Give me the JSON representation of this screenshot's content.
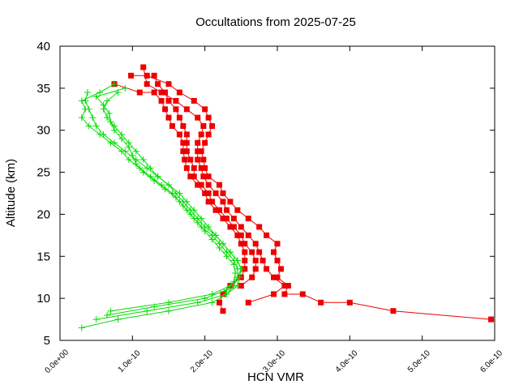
{
  "chart_data": {
    "type": "line",
    "title": "Occultations from 2025-07-25",
    "xlabel": "HCN VMR",
    "ylabel": "Altitude (km)",
    "xlim": [
      0,
      6e-10
    ],
    "ylim": [
      5,
      40
    ],
    "x_ticks": [
      0,
      1e-10,
      2e-10,
      3e-10,
      4e-10,
      5e-10,
      6e-10
    ],
    "x_tick_labels": [
      "0.0e+00",
      "1.0e-10",
      "2.0e-10",
      "3.0e-10",
      "4.0e-10",
      "5.0e-10",
      "6.0e-10"
    ],
    "y_ticks": [
      5,
      10,
      15,
      20,
      25,
      30,
      35,
      40
    ],
    "y_tick_labels": [
      "5",
      "10",
      "15",
      "20",
      "25",
      "30",
      "35",
      "40"
    ],
    "grid": false,
    "legend": "none",
    "series": [
      {
        "color": "#ee0000",
        "marker": "square",
        "points": [
          [
            5.95e-10,
            7.5
          ],
          [
            4.6e-10,
            8.5
          ],
          [
            4e-10,
            9.5
          ],
          [
            3.6e-10,
            9.5
          ],
          [
            3.35e-10,
            10.5
          ],
          [
            3.1e-10,
            10.5
          ],
          [
            3.15e-10,
            11.5
          ],
          [
            3e-10,
            12.5
          ],
          [
            3.05e-10,
            13.5
          ],
          [
            3e-10,
            14.5
          ],
          [
            2.95e-10,
            15.5
          ],
          [
            3e-10,
            16.5
          ],
          [
            2.85e-10,
            17.5
          ],
          [
            2.75e-10,
            18.5
          ],
          [
            2.6e-10,
            19.5
          ],
          [
            2.45e-10,
            20.5
          ],
          [
            2.35e-10,
            21.5
          ],
          [
            2.25e-10,
            22.5
          ],
          [
            2.2e-10,
            23.5
          ],
          [
            2.05e-10,
            24.5
          ],
          [
            2e-10,
            25.5
          ],
          [
            1.98e-10,
            26.5
          ],
          [
            1.95e-10,
            27.5
          ],
          [
            2e-10,
            28.5
          ],
          [
            2.05e-10,
            29.5
          ],
          [
            2.1e-10,
            30.5
          ],
          [
            2.05e-10,
            31.5
          ],
          [
            2e-10,
            32.5
          ],
          [
            1.85e-10,
            33.5
          ],
          [
            1.65e-10,
            34.5
          ],
          [
            1.5e-10,
            35.5
          ],
          [
            1.2e-10,
            36.5
          ],
          [
            9.8e-11,
            36.5
          ]
        ]
      },
      {
        "color": "#ee0000",
        "marker": "square",
        "points": [
          [
            2.6e-10,
            9.5
          ],
          [
            2.95e-10,
            10.5
          ],
          [
            3.1e-10,
            11.5
          ],
          [
            2.95e-10,
            12.5
          ],
          [
            2.85e-10,
            13.5
          ],
          [
            2.8e-10,
            14.5
          ],
          [
            2.75e-10,
            15.5
          ],
          [
            2.7e-10,
            16.5
          ],
          [
            2.6e-10,
            17.5
          ],
          [
            2.5e-10,
            18.5
          ],
          [
            2.4e-10,
            19.5
          ],
          [
            2.3e-10,
            20.5
          ],
          [
            2.25e-10,
            21.5
          ],
          [
            2.15e-10,
            22.5
          ],
          [
            2.05e-10,
            23.5
          ],
          [
            1.98e-10,
            24.5
          ],
          [
            1.95e-10,
            25.5
          ],
          [
            1.9e-10,
            26.5
          ],
          [
            1.9e-10,
            27.5
          ],
          [
            1.9e-10,
            28.5
          ],
          [
            1.95e-10,
            29.5
          ],
          [
            1.98e-10,
            30.5
          ],
          [
            1.9e-10,
            31.5
          ],
          [
            1.75e-10,
            32.5
          ],
          [
            1.6e-10,
            33.5
          ],
          [
            1.4e-10,
            34.5
          ],
          [
            1.2e-10,
            35.5
          ],
          [
            1.15e-10,
            37.5
          ]
        ]
      },
      {
        "color": "#ee0000",
        "marker": "square",
        "points": [
          [
            2.25e-10,
            8.5
          ],
          [
            2.2e-10,
            9.5
          ],
          [
            2.25e-10,
            10.5
          ],
          [
            2.35e-10,
            11.5
          ],
          [
            2.5e-10,
            12.5
          ],
          [
            2.55e-10,
            13.5
          ],
          [
            2.55e-10,
            14.5
          ],
          [
            2.55e-10,
            15.5
          ],
          [
            2.5e-10,
            16.5
          ],
          [
            2.45e-10,
            17.5
          ],
          [
            2.35e-10,
            18.5
          ],
          [
            2.25e-10,
            19.5
          ],
          [
            2.15e-10,
            20.5
          ],
          [
            2.05e-10,
            21.5
          ],
          [
            2e-10,
            22.5
          ],
          [
            1.9e-10,
            23.5
          ],
          [
            1.8e-10,
            24.5
          ],
          [
            1.75e-10,
            25.5
          ],
          [
            1.72e-10,
            26.5
          ],
          [
            1.7e-10,
            27.5
          ],
          [
            1.7e-10,
            28.5
          ],
          [
            1.65e-10,
            29.5
          ],
          [
            1.55e-10,
            30.5
          ],
          [
            1.5e-10,
            31.5
          ],
          [
            1.45e-10,
            32.5
          ],
          [
            1.4e-10,
            33.5
          ],
          [
            1.3e-10,
            34.5
          ],
          [
            1.1e-10,
            34.5
          ],
          [
            7.5e-11,
            35.5
          ]
        ]
      },
      {
        "color": "#ee0000",
        "marker": "square",
        "points": [
          [
            2.5e-10,
            11.5
          ],
          [
            2.65e-10,
            12.5
          ],
          [
            2.7e-10,
            13.5
          ],
          [
            2.7e-10,
            14.5
          ],
          [
            2.65e-10,
            15.5
          ],
          [
            2.55e-10,
            16.5
          ],
          [
            2.5e-10,
            17.5
          ],
          [
            2.4e-10,
            18.5
          ],
          [
            2.3e-10,
            19.5
          ],
          [
            2.2e-10,
            20.5
          ],
          [
            2.1e-10,
            21.5
          ],
          [
            2.05e-10,
            22.5
          ],
          [
            1.95e-10,
            23.5
          ],
          [
            1.85e-10,
            24.5
          ],
          [
            1.85e-10,
            25.5
          ],
          [
            1.8e-10,
            26.5
          ],
          [
            1.75e-10,
            27.5
          ],
          [
            1.75e-10,
            28.5
          ],
          [
            1.75e-10,
            29.5
          ],
          [
            1.7e-10,
            30.5
          ],
          [
            1.65e-10,
            31.5
          ],
          [
            1.6e-10,
            32.5
          ],
          [
            1.5e-10,
            33.5
          ],
          [
            1.45e-10,
            34.5
          ],
          [
            1.35e-10,
            35.5
          ],
          [
            1.3e-10,
            36.5
          ]
        ]
      },
      {
        "color": "#00dd00",
        "marker": "plus",
        "points": [
          [
            3e-11,
            6.5
          ],
          [
            8e-11,
            7.5
          ],
          [
            1.5e-10,
            8.5
          ],
          [
            2.1e-10,
            9.5
          ],
          [
            2.3e-10,
            10.5
          ],
          [
            2.45e-10,
            11.5
          ],
          [
            2.48e-10,
            12.5
          ],
          [
            2.5e-10,
            13.5
          ],
          [
            2.45e-10,
            14.5
          ],
          [
            2.35e-10,
            15.5
          ],
          [
            2.25e-10,
            16.5
          ],
          [
            2.15e-10,
            17.5
          ],
          [
            2.05e-10,
            18.5
          ],
          [
            1.95e-10,
            19.5
          ],
          [
            1.85e-10,
            20.5
          ],
          [
            1.75e-10,
            21.5
          ],
          [
            1.65e-10,
            22.5
          ],
          [
            1.5e-10,
            23.5
          ],
          [
            1.35e-10,
            24.5
          ],
          [
            1.2e-10,
            25.5
          ],
          [
            1.05e-10,
            26.5
          ],
          [
            9e-11,
            27.5
          ],
          [
            7.5e-11,
            28.5
          ],
          [
            6e-11,
            29.5
          ],
          [
            5e-11,
            30.5
          ],
          [
            4.5e-11,
            31.5
          ],
          [
            4e-11,
            32.5
          ],
          [
            3.5e-11,
            33.5
          ],
          [
            3.8e-11,
            34.5
          ]
        ]
      },
      {
        "color": "#00dd00",
        "marker": "plus",
        "points": [
          [
            5e-11,
            7.5
          ],
          [
            1.2e-10,
            8.5
          ],
          [
            1.9e-10,
            9.5
          ],
          [
            2.3e-10,
            10.5
          ],
          [
            2.4e-10,
            11.5
          ],
          [
            2.45e-10,
            12.5
          ],
          [
            2.45e-10,
            13.5
          ],
          [
            2.4e-10,
            14.5
          ],
          [
            2.3e-10,
            15.5
          ],
          [
            2.2e-10,
            16.5
          ],
          [
            2.1e-10,
            17.5
          ],
          [
            1.95e-10,
            18.5
          ],
          [
            1.85e-10,
            19.5
          ],
          [
            1.75e-10,
            20.5
          ],
          [
            1.65e-10,
            21.5
          ],
          [
            1.55e-10,
            22.5
          ],
          [
            1.4e-10,
            23.5
          ],
          [
            1.25e-10,
            24.5
          ],
          [
            1.1e-10,
            25.5
          ],
          [
            9.5e-11,
            26.5
          ],
          [
            8.5e-11,
            27.5
          ],
          [
            7e-11,
            28.5
          ],
          [
            5.5e-11,
            29.5
          ],
          [
            4e-11,
            30.5
          ],
          [
            3e-11,
            31.5
          ],
          [
            3.5e-11,
            32.5
          ],
          [
            3e-11,
            33.5
          ],
          [
            5.5e-11,
            34.5
          ],
          [
            7.5e-11,
            35.5
          ]
        ]
      },
      {
        "color": "#00dd00",
        "marker": "plus",
        "points": [
          [
            7e-11,
            8.5
          ],
          [
            1.5e-10,
            9.5
          ],
          [
            2.1e-10,
            10.5
          ],
          [
            2.35e-10,
            11.5
          ],
          [
            2.45e-10,
            12.5
          ],
          [
            2.5e-10,
            13.5
          ],
          [
            2.45e-10,
            14.5
          ],
          [
            2.35e-10,
            15.5
          ],
          [
            2.25e-10,
            16.5
          ],
          [
            2.15e-10,
            17.5
          ],
          [
            2e-10,
            18.5
          ],
          [
            1.9e-10,
            19.5
          ],
          [
            1.8e-10,
            20.5
          ],
          [
            1.7e-10,
            21.5
          ],
          [
            1.6e-10,
            22.5
          ],
          [
            1.5e-10,
            23.5
          ],
          [
            1.35e-10,
            24.5
          ],
          [
            1.25e-10,
            25.5
          ],
          [
            1.15e-10,
            26.5
          ],
          [
            1.05e-10,
            27.5
          ],
          [
            9.5e-11,
            28.5
          ],
          [
            8.5e-11,
            29.5
          ],
          [
            7.5e-11,
            30.5
          ],
          [
            6.5e-11,
            31.5
          ],
          [
            6e-11,
            32.5
          ],
          [
            6.5e-11,
            33.5
          ],
          [
            8e-11,
            34.5
          ]
        ]
      },
      {
        "color": "#00dd00",
        "marker": "plus",
        "points": [
          [
            6.5e-11,
            8.0
          ],
          [
            1.3e-10,
            9.0
          ],
          [
            2e-10,
            10.0
          ],
          [
            2.3e-10,
            11.0
          ],
          [
            2.4e-10,
            12.0
          ],
          [
            2.42e-10,
            13.0
          ],
          [
            2.4e-10,
            14.0
          ],
          [
            2.3e-10,
            15.0
          ],
          [
            2.2e-10,
            16.0
          ],
          [
            2.1e-10,
            17.0
          ],
          [
            2e-10,
            18.0
          ],
          [
            1.9e-10,
            19.0
          ],
          [
            1.8e-10,
            20.0
          ],
          [
            1.7e-10,
            21.0
          ],
          [
            1.6e-10,
            22.0
          ],
          [
            1.45e-10,
            23.0
          ],
          [
            1.3e-10,
            24.0
          ],
          [
            1.15e-10,
            25.0
          ],
          [
            1.05e-10,
            26.0
          ],
          [
            1e-10,
            27.0
          ],
          [
            9.5e-11,
            28.0
          ],
          [
            8.5e-11,
            29.0
          ],
          [
            7.5e-11,
            30.0
          ],
          [
            7e-11,
            31.0
          ],
          [
            6.8e-11,
            32.0
          ],
          [
            6e-11,
            33.0
          ],
          [
            5e-11,
            34.0
          ],
          [
            9e-11,
            35.0
          ]
        ]
      }
    ]
  }
}
